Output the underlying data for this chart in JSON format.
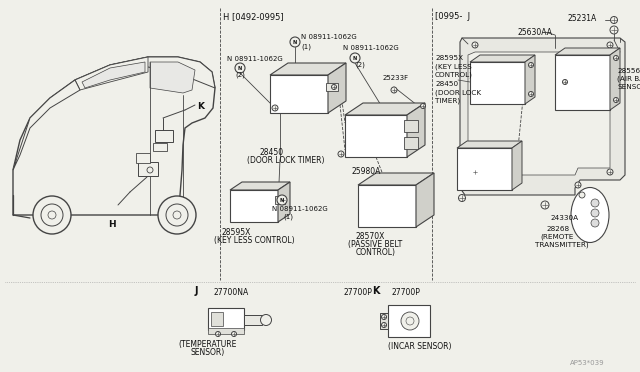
{
  "bg_color": "#f0f0ea",
  "line_color": "#444444",
  "text_color": "#111111",
  "fig_width": 6.4,
  "fig_height": 3.72,
  "dpi": 100,
  "labels": {
    "section_H": "H [0492-0995]",
    "section_J": "[0995-  J",
    "N1_top": "N 08911-1062G",
    "N1_sub": "(1)",
    "N2_left": "N 08911-1062G",
    "N2_left_sub": "(2)",
    "N2_right": "N 08911-1062G",
    "N2_right_sub": "(2)",
    "N3_bot": "N 08911-1062G",
    "N3_bot_sub": "(1)",
    "part28450": "28450",
    "part28450b": "(DOOR LOCK TIMER)",
    "part25233F": "25233F",
    "part25980A": "25980A",
    "part28595X": "28595X",
    "part28595Xb": "(KEY LESS CONTROL)",
    "part28570X": "28570X",
    "part28570Xb": "(PASSIVE BELT",
    "part28570Xc": "CONTROL)",
    "part25231A": "25231A",
    "part25630AA": "25630AA",
    "part28595X2": "28595X",
    "part28595X2b": "(KEY LESS",
    "part28595X2c": "CONTROL)",
    "part28450b2": "28450",
    "part28450c2": "(DOOR LOCK",
    "part28450d2": "TIMER)",
    "part28556": "28556",
    "part28556b": "(AIR BAG",
    "part28556c": "SENSOR)",
    "part24330A": "24330A",
    "part28268": "28268",
    "part28268b": "(REMOTE",
    "part28268c": "TRANSMITTER)",
    "J_label": "J",
    "K_label": "K",
    "H_label": "H",
    "K2_label": "K",
    "part27700NA": "27700NA",
    "part27700P": "27700P",
    "partTEMP": "(TEMPERATURE",
    "partTEMPb": "SENSOR)",
    "partINCAR": "(INCAR SENSOR)",
    "watermark": "AP53*039"
  }
}
